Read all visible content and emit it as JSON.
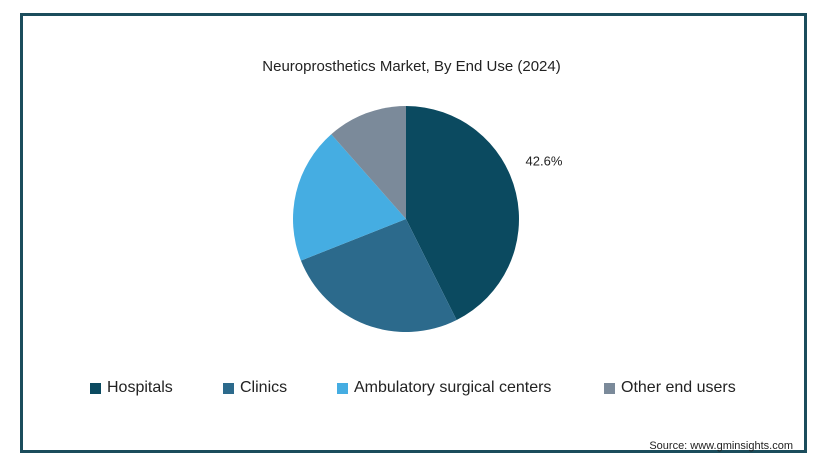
{
  "chart_data": {
    "type": "pie",
    "title": "Neuroprosthetics Market, By End Use (2024)",
    "slices": [
      {
        "label": "Hospitals",
        "value": 42.6,
        "color": "#0b4a60",
        "data_label": "42.6%"
      },
      {
        "label": "Clinics",
        "value": 26.4,
        "color": "#2c6a8c",
        "data_label": ""
      },
      {
        "label": "Ambulatory surgical centers",
        "value": 19.5,
        "color": "#45ade2",
        "data_label": ""
      },
      {
        "label": "Other end users",
        "value": 11.5,
        "color": "#7b8a9a",
        "data_label": ""
      }
    ],
    "legend_position": "bottom"
  },
  "footer": {
    "source": "Source: www.gminsights.com"
  }
}
